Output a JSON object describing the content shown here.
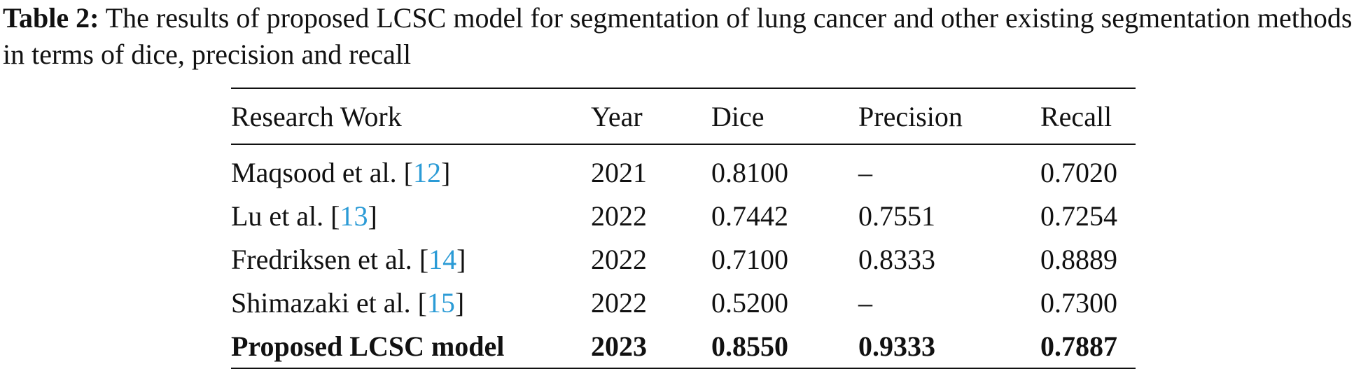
{
  "caption": {
    "label": "Table 2:",
    "text": "The results of proposed LCSC model for segmentation of lung cancer and other existing segmentation methods in terms of dice, precision and recall"
  },
  "table": {
    "headers": {
      "work": "Research Work",
      "year": "Year",
      "dice": "Dice",
      "precision": "Precision",
      "recall": "Recall"
    },
    "rows": [
      {
        "work": "Maqsood et al.",
        "ref": "12",
        "year": "2021",
        "dice": "0.8100",
        "precision": "–",
        "recall": "0.7020"
      },
      {
        "work": "Lu et al.",
        "ref": "13",
        "year": "2022",
        "dice": "0.7442",
        "precision": "0.7551",
        "recall": "0.7254"
      },
      {
        "work": "Fredriksen et al.",
        "ref": "14",
        "year": "2022",
        "dice": "0.7100",
        "precision": "0.8333",
        "recall": "0.8889"
      },
      {
        "work": "Shimazaki et al.",
        "ref": "15",
        "year": "2022",
        "dice": "0.5200",
        "precision": "–",
        "recall": "0.7300"
      }
    ],
    "proposed": {
      "work": "Proposed LCSC model",
      "year": "2023",
      "dice": "0.8550",
      "precision": "0.9333",
      "recall": "0.7887"
    },
    "link_color": "#2b9bd6"
  }
}
